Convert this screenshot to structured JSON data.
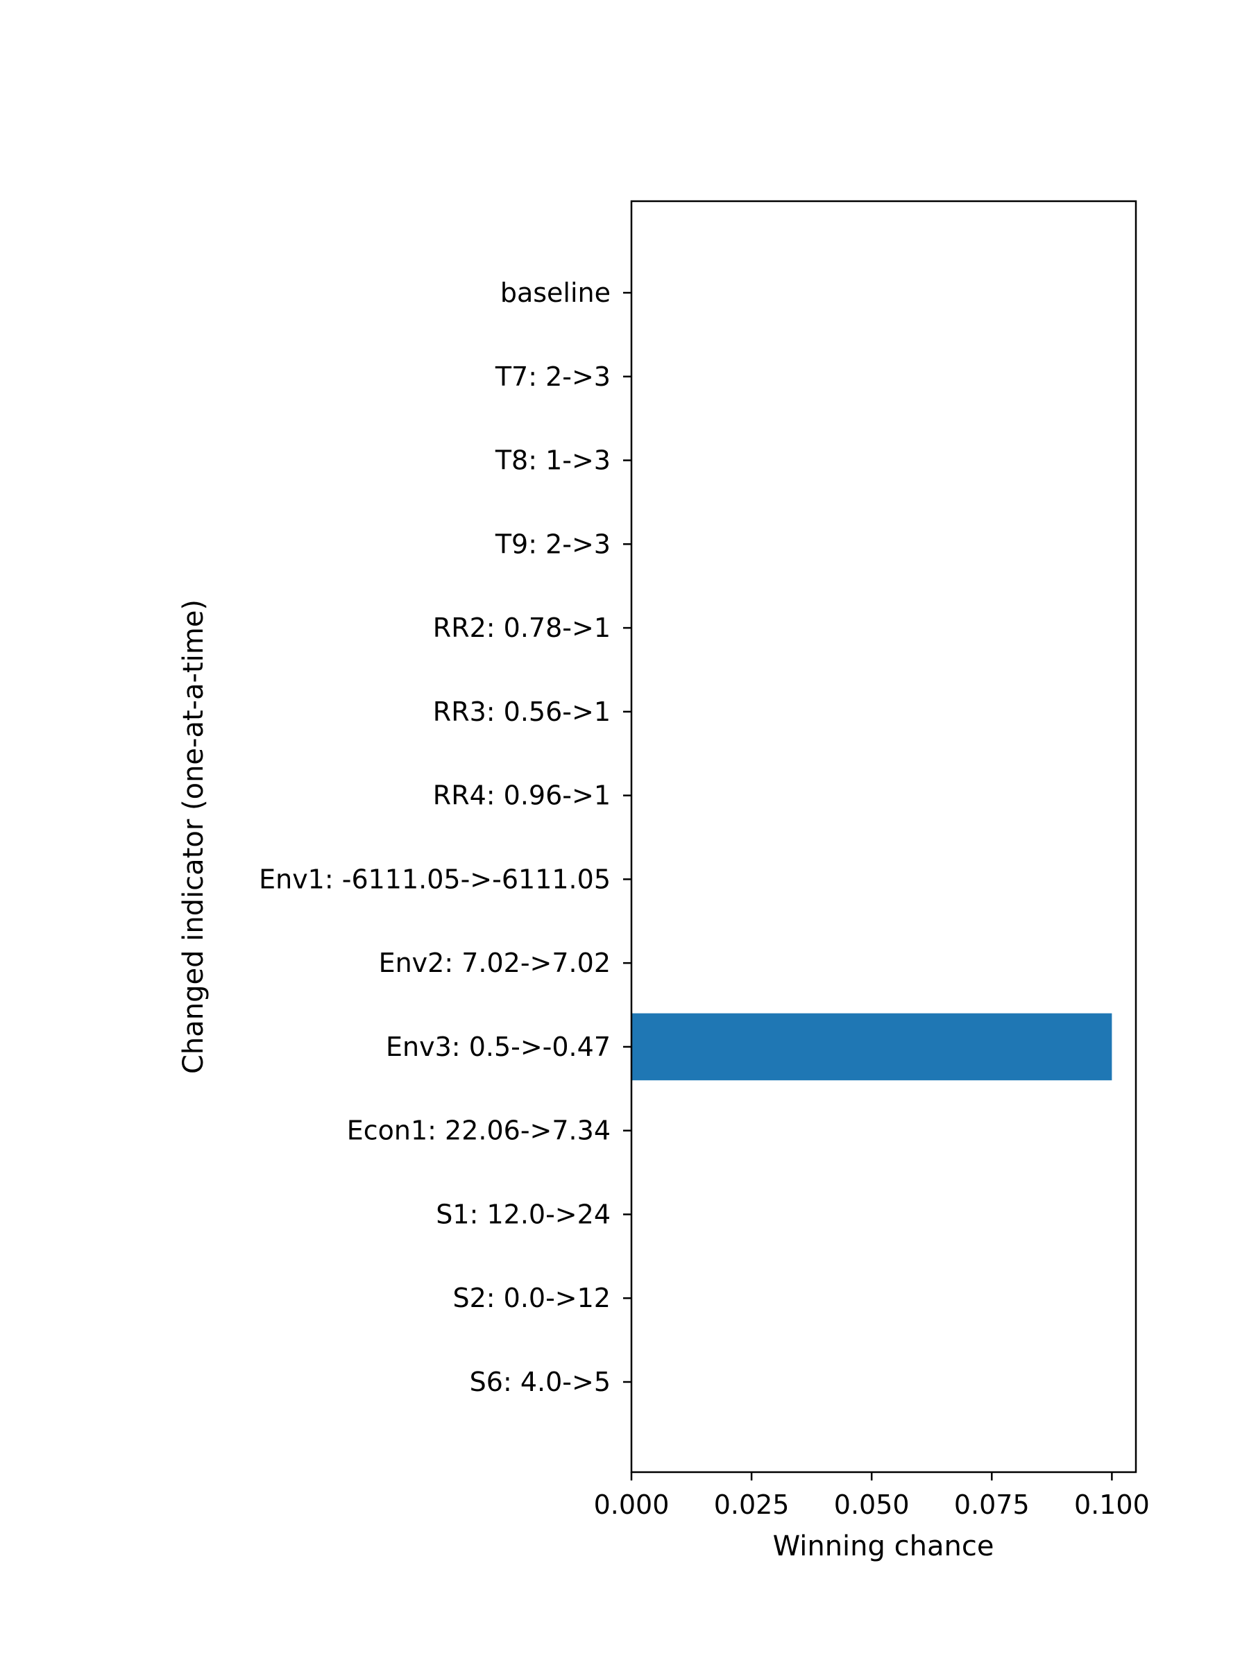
{
  "chart_data": {
    "type": "bar",
    "orientation": "horizontal",
    "categories": [
      "baseline",
      "T7: 2->3",
      "T8: 1->3",
      "T9: 2->3",
      "RR2: 0.78->1",
      "RR3: 0.56->1",
      "RR4: 0.96->1",
      "Env1: -6111.05->-6111.05",
      "Env2: 7.02->7.02",
      "Env3: 0.5->-0.47",
      "Econ1: 22.06->7.34",
      "S1: 12.0->24",
      "S2: 0.0->12",
      "S6: 4.0->5"
    ],
    "values": [
      0,
      0,
      0,
      0,
      0,
      0,
      0,
      0,
      0,
      0.1,
      0,
      0,
      0,
      0
    ],
    "xlabel": "Winning chance",
    "ylabel": "Changed indicator (one-at-a-time)",
    "xlim": [
      0,
      0.105
    ],
    "xticks": [
      0.0,
      0.025,
      0.05,
      0.075,
      0.1
    ],
    "xtick_labels": [
      "0.000",
      "0.025",
      "0.050",
      "0.075",
      "0.100"
    ],
    "bar_color": "#1f77b4",
    "grid": false,
    "legend": "none"
  }
}
